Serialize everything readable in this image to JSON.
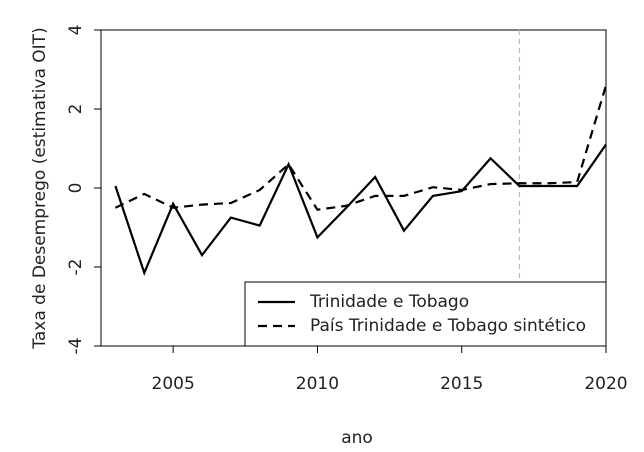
{
  "chart_data": {
    "type": "line",
    "x_label": "ano",
    "y_label": "Taxa de Desemprego (estimativa OIT)",
    "x": [
      2003,
      2004,
      2005,
      2006,
      2007,
      2008,
      2009,
      2010,
      2011,
      2012,
      2013,
      2014,
      2015,
      2016,
      2017,
      2018,
      2019,
      2020
    ],
    "series": [
      {
        "name": "Trinidade e Tobago",
        "color": "#000000",
        "dash": "solid",
        "values": [
          0.05,
          -2.15,
          -0.4,
          -1.7,
          -0.75,
          -0.95,
          0.6,
          -1.25,
          -0.5,
          0.28,
          -1.08,
          -0.2,
          -0.08,
          0.75,
          0.05,
          0.05,
          0.05,
          1.1
        ]
      },
      {
        "name": "País Trinidade e Tobago sintético",
        "color": "#000000",
        "dash": "dashed",
        "values": [
          -0.5,
          -0.15,
          -0.5,
          -0.42,
          -0.38,
          -0.05,
          0.6,
          -0.55,
          -0.45,
          -0.2,
          -0.2,
          0.02,
          -0.05,
          0.1,
          0.12,
          0.12,
          0.15,
          2.6
        ]
      }
    ],
    "vline": 2017,
    "vline_color": "#bbbbbb",
    "xlim": [
      2002.5,
      2020
    ],
    "xticks": [
      2005,
      2010,
      2015,
      2020
    ],
    "ylim": [
      -4,
      4
    ],
    "yticks": [
      -4,
      -2,
      0,
      2,
      4
    ],
    "legend": "bottom-right"
  }
}
